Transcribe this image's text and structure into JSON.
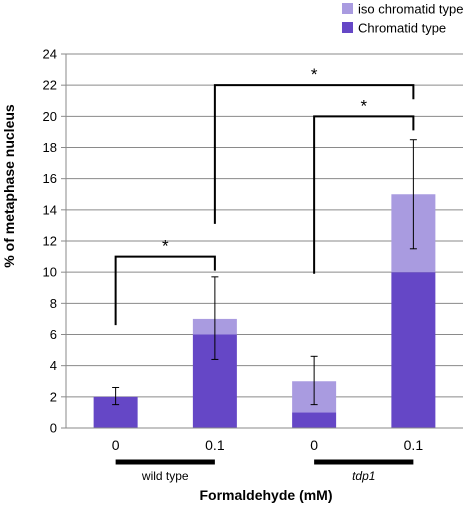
{
  "chart_data": {
    "type": "bar",
    "stacked": true,
    "categories": [
      "0",
      "0.1",
      "0",
      "0.1"
    ],
    "groups": [
      {
        "label": "wild type",
        "italic": false,
        "categories": [
          0,
          1
        ]
      },
      {
        "label": "tdp1",
        "italic": true,
        "categories": [
          2,
          3
        ]
      }
    ],
    "series": [
      {
        "name": "Chromatid type",
        "color": "#6547c6",
        "values": [
          2,
          6,
          1,
          10
        ]
      },
      {
        "name": "iso chromatid type",
        "color": "#a99be0",
        "values": [
          0,
          1,
          2,
          5
        ]
      }
    ],
    "error_bars": [
      {
        "center": 2,
        "low": 1.5,
        "high": 2.6
      },
      {
        "center": 7,
        "low": 4.4,
        "high": 9.7
      },
      {
        "center": 3,
        "low": 1.5,
        "high": 4.6
      },
      {
        "center": 15,
        "low": 11.5,
        "high": 18.5
      }
    ],
    "significance": [
      {
        "from": 0,
        "to": 1,
        "label": "*",
        "from_top": 6.6,
        "to_top": 10.1,
        "bar_y": 11
      },
      {
        "from": 2,
        "to": 3,
        "label": "*",
        "from_top": 9.9,
        "to_top": 19.1,
        "bar_y": 20
      },
      {
        "from": 1,
        "to": 3,
        "label": "*",
        "from_top": 13.1,
        "to_top": 21.1,
        "bar_y": 22
      }
    ],
    "xlabel": "Formaldehyde (mM)",
    "ylabel": "% of metaphase nucleus",
    "ylim": [
      0,
      24
    ],
    "yticks": [
      0,
      2,
      4,
      6,
      8,
      10,
      12,
      14,
      16,
      18,
      20,
      22,
      24
    ],
    "grid": true,
    "legend_position": "top-right"
  }
}
